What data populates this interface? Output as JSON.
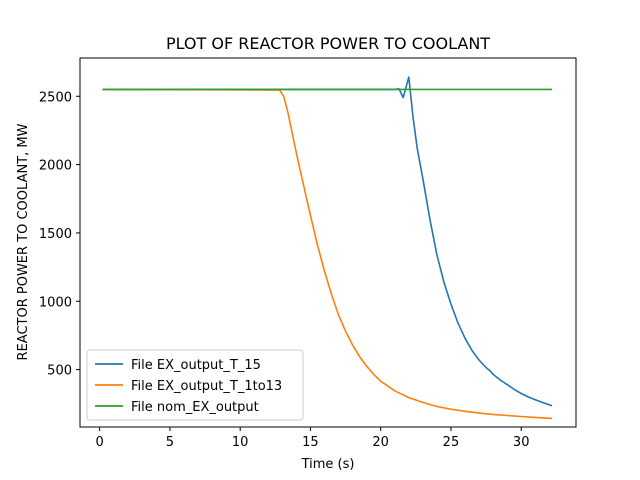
{
  "chart_data": {
    "type": "line",
    "title": "PLOT OF REACTOR POWER TO COOLANT",
    "xlabel": "Time (s)",
    "ylabel": "REACTOR POWER TO COOLANT, MW",
    "xlim": [
      -1.4,
      33.9
    ],
    "ylim": [
      80,
      2780
    ],
    "xticks": [
      0,
      5,
      10,
      15,
      20,
      25,
      30
    ],
    "yticks": [
      500,
      1000,
      1500,
      2000,
      2500
    ],
    "grid": false,
    "legend_position": "lower-left",
    "series": [
      {
        "name": "File EX_output_T_15",
        "color": "#1f77b4",
        "x": [
          0.2,
          21.0,
          21.3,
          21.6,
          22.0,
          22.3,
          22.6,
          23.0,
          23.5,
          24.0,
          24.5,
          25.0,
          25.5,
          26.0,
          26.5,
          27.0,
          27.5,
          27.8,
          28.0,
          28.5,
          29.0,
          29.5,
          30.0,
          30.5,
          31.0,
          31.5,
          32.2
        ],
        "y": [
          2550,
          2550,
          2555,
          2490,
          2640,
          2350,
          2120,
          1900,
          1600,
          1340,
          1140,
          980,
          840,
          730,
          640,
          570,
          515,
          490,
          465,
          425,
          390,
          355,
          325,
          300,
          280,
          260,
          235
        ]
      },
      {
        "name": "File EX_output_T_1to13",
        "color": "#ff7f0e",
        "x": [
          0.2,
          12.8,
          13.1,
          13.4,
          13.8,
          14.2,
          14.6,
          15.0,
          15.5,
          16.0,
          16.5,
          17.0,
          17.5,
          18.0,
          18.5,
          19.0,
          19.5,
          20.0,
          21.0,
          22.0,
          23.0,
          24.0,
          25.0,
          26.0,
          27.0,
          28.0,
          29.0,
          30.0,
          31.0,
          32.2
        ],
        "y": [
          2550,
          2545,
          2500,
          2380,
          2180,
          1990,
          1810,
          1630,
          1410,
          1220,
          1050,
          900,
          780,
          680,
          595,
          525,
          465,
          415,
          345,
          295,
          260,
          230,
          210,
          195,
          182,
          172,
          164,
          157,
          150,
          143
        ]
      },
      {
        "name": "File nom_EX_output",
        "color": "#2ca02c",
        "x": [
          0.2,
          32.2
        ],
        "y": [
          2550,
          2550
        ]
      }
    ]
  }
}
